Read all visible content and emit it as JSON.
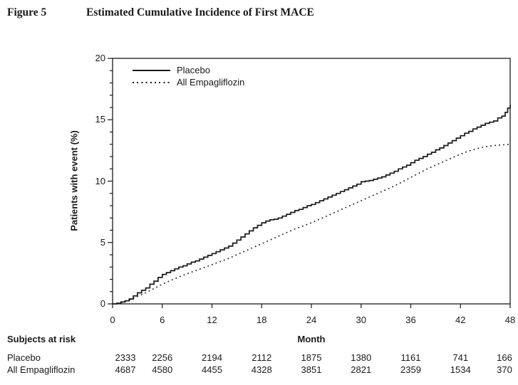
{
  "figure": {
    "label": "Figure 5",
    "title": "Estimated Cumulative Incidence of First MACE"
  },
  "chart_data": {
    "type": "line",
    "title": "Estimated Cumulative Incidence of First MACE",
    "xlabel": "Month",
    "ylabel": "Patients with event (%)",
    "xlim": [
      0,
      48
    ],
    "ylim": [
      0,
      20
    ],
    "x_ticks": [
      0,
      6,
      12,
      18,
      24,
      30,
      36,
      42,
      48
    ],
    "y_ticks": [
      0,
      5,
      10,
      15,
      20
    ],
    "y_minor_tick_step": 1,
    "grid": false,
    "legend_position": "inside-top-left",
    "series": [
      {
        "name": "Placebo",
        "style": "solid-step",
        "x": [
          0,
          0.5,
          1,
          1.5,
          2,
          2.5,
          3,
          3.5,
          4,
          4.5,
          5,
          5.5,
          6,
          6.5,
          7,
          7.5,
          8,
          8.5,
          9,
          9.5,
          10,
          10.5,
          11,
          11.5,
          12,
          12.5,
          13,
          13.5,
          14,
          14.5,
          15,
          15.5,
          16,
          16.5,
          17,
          17.5,
          18,
          18.5,
          19,
          19.5,
          20,
          20.5,
          21,
          21.5,
          22,
          22.5,
          23,
          23.5,
          24,
          24.5,
          25,
          25.5,
          26,
          26.5,
          27,
          27.5,
          28,
          28.5,
          29,
          29.5,
          30,
          30.5,
          31,
          31.5,
          32,
          32.5,
          33,
          33.5,
          34,
          34.5,
          35,
          35.5,
          36,
          36.5,
          37,
          37.5,
          38,
          38.5,
          39,
          39.5,
          40,
          40.5,
          41,
          41.5,
          42,
          42.5,
          43,
          43.5,
          44,
          44.5,
          45,
          45.5,
          46,
          46.5,
          47,
          47.4,
          47.7,
          48
        ],
        "y": [
          0,
          0.05,
          0.15,
          0.25,
          0.4,
          0.65,
          0.9,
          1.1,
          1.3,
          1.6,
          1.85,
          2.15,
          2.4,
          2.55,
          2.7,
          2.85,
          3.0,
          3.1,
          3.25,
          3.4,
          3.5,
          3.65,
          3.8,
          3.95,
          4.1,
          4.25,
          4.4,
          4.55,
          4.7,
          4.95,
          5.2,
          5.45,
          5.7,
          5.95,
          6.2,
          6.4,
          6.6,
          6.75,
          6.85,
          6.9,
          7.0,
          7.15,
          7.3,
          7.45,
          7.6,
          7.7,
          7.85,
          8.0,
          8.1,
          8.25,
          8.4,
          8.55,
          8.7,
          8.85,
          9.0,
          9.15,
          9.3,
          9.45,
          9.6,
          9.75,
          9.95,
          10.0,
          10.05,
          10.15,
          10.25,
          10.35,
          10.5,
          10.65,
          10.8,
          11.0,
          11.15,
          11.3,
          11.5,
          11.7,
          11.85,
          12.0,
          12.2,
          12.35,
          12.55,
          12.7,
          12.9,
          13.1,
          13.3,
          13.5,
          13.7,
          13.9,
          14.05,
          14.25,
          14.4,
          14.55,
          14.7,
          14.8,
          14.9,
          15.15,
          15.3,
          15.6,
          15.95,
          16.2
        ]
      },
      {
        "name": "All Empagliflozin",
        "style": "dotted",
        "x": [
          0,
          1,
          2,
          3,
          4,
          5,
          6,
          7,
          8,
          9,
          10,
          11,
          12,
          13,
          14,
          15,
          16,
          17,
          18,
          19,
          20,
          21,
          22,
          23,
          24,
          25,
          26,
          27,
          28,
          29,
          30,
          31,
          32,
          33,
          34,
          35,
          36,
          37,
          38,
          39,
          40,
          41,
          42,
          43,
          44,
          45,
          46,
          47,
          48
        ],
        "y": [
          0,
          0.1,
          0.3,
          0.6,
          0.9,
          1.25,
          1.6,
          1.9,
          2.2,
          2.45,
          2.7,
          2.95,
          3.2,
          3.45,
          3.7,
          4.0,
          4.3,
          4.6,
          4.9,
          5.2,
          5.5,
          5.8,
          6.1,
          6.35,
          6.6,
          6.9,
          7.2,
          7.5,
          7.8,
          8.1,
          8.4,
          8.7,
          9.0,
          9.3,
          9.6,
          9.95,
          10.3,
          10.65,
          11.0,
          11.3,
          11.6,
          11.9,
          12.2,
          12.45,
          12.65,
          12.8,
          12.9,
          12.95,
          13.0
        ]
      }
    ]
  },
  "risk_table": {
    "heading": "Subjects at risk",
    "months": [
      0,
      6,
      12,
      18,
      24,
      30,
      36,
      42,
      48
    ],
    "rows": [
      {
        "label": "Placebo",
        "values": [
          2333,
          2256,
          2194,
          2112,
          1875,
          1380,
          1161,
          741,
          166
        ]
      },
      {
        "label": "All Empagliflozin",
        "values": [
          4687,
          4580,
          4455,
          4328,
          3851,
          2821,
          2359,
          1534,
          370
        ]
      }
    ]
  },
  "colors": {
    "line": "#1a1a1a",
    "text": "#1a1a1a",
    "background": "#ffffff"
  }
}
